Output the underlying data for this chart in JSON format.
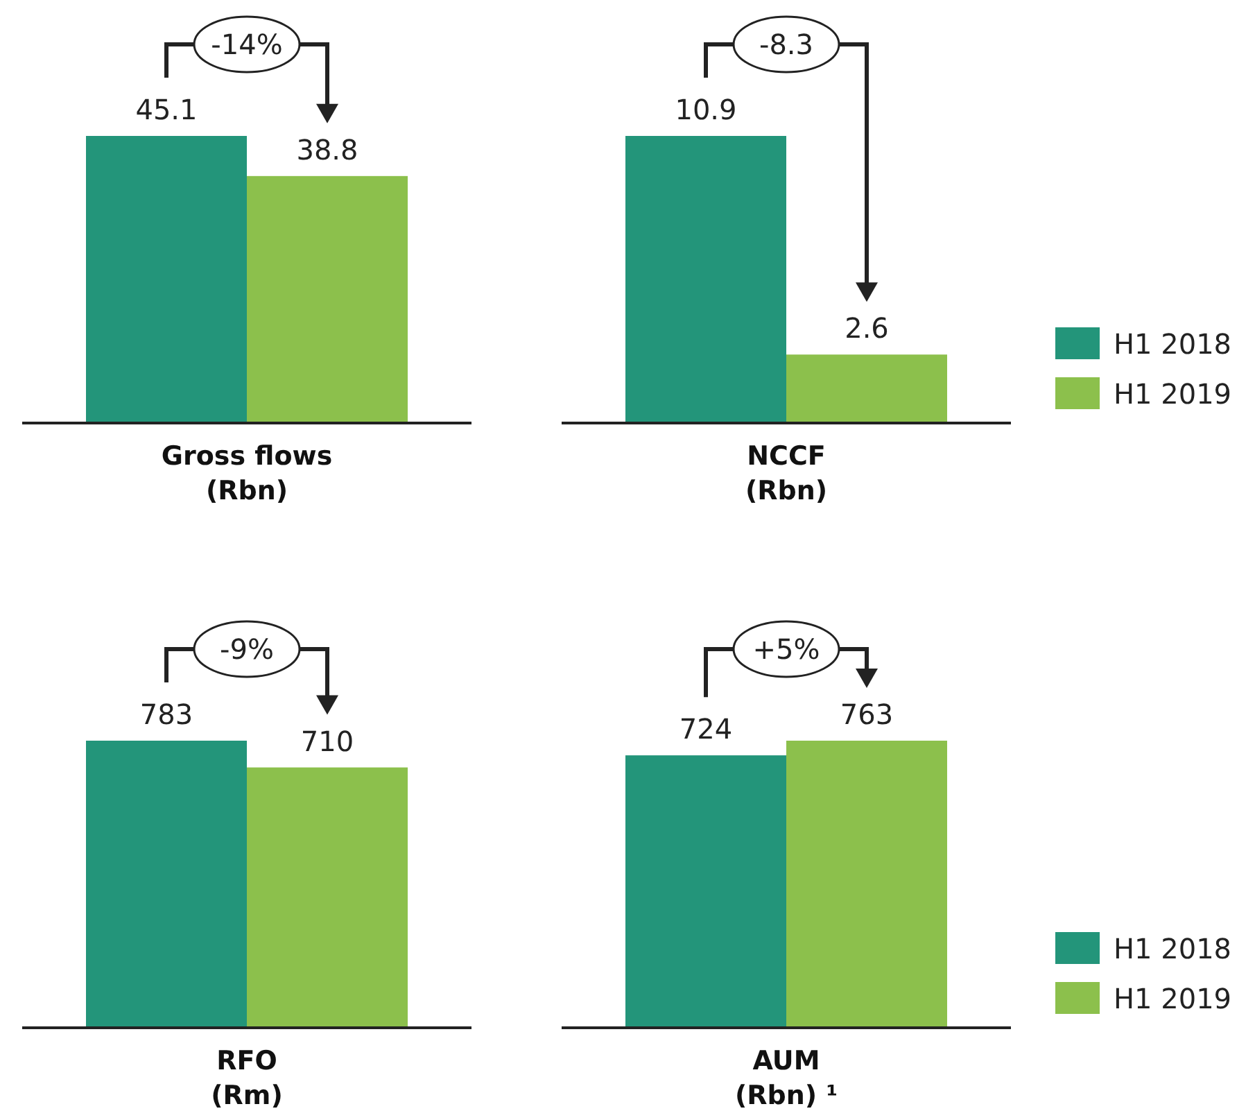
{
  "chart_data": [
    {
      "type": "bar",
      "xlabel": "Gross flows\n(Rbn)",
      "categories": [
        null
      ],
      "series": [
        {
          "color": "#23957a",
          "values": [
            45.1
          ]
        },
        {
          "color": "#8cc04c",
          "values": [
            38.8
          ]
        }
      ],
      "data_labels": true,
      "annotations": [
        "-14%"
      ],
      "legend": false
    },
    {
      "type": "bar",
      "xlabel": "NCCF\n(Rbn)",
      "categories": [
        null
      ],
      "series": [
        {
          "name": "H1 2018",
          "color": "#23957a",
          "values": [
            10.9
          ]
        },
        {
          "name": "H1 2019",
          "color": "#8cc04c",
          "values": [
            2.6
          ]
        }
      ],
      "data_labels": true,
      "annotations": [
        "-8.3"
      ],
      "legend": "right"
    },
    {
      "type": "bar",
      "xlabel": "RFO\n(Rm)",
      "categories": [
        null
      ],
      "series": [
        {
          "color": "#23957a",
          "values": [
            783
          ]
        },
        {
          "color": "#8cc04c",
          "values": [
            710
          ]
        }
      ],
      "data_labels": true,
      "annotations": [
        "-9%"
      ],
      "legend": false
    },
    {
      "type": "bar",
      "xlabel": "AUM\n(Rbn) ¹",
      "categories": [
        null
      ],
      "series": [
        {
          "name": "H1 2018",
          "color": "#23957a",
          "values": [
            724
          ]
        },
        {
          "name": "H1 2019",
          "color": "#8cc04c",
          "values": [
            763
          ]
        }
      ],
      "data_labels": true,
      "annotations": [
        "+5%"
      ],
      "legend": "right"
    }
  ]
}
